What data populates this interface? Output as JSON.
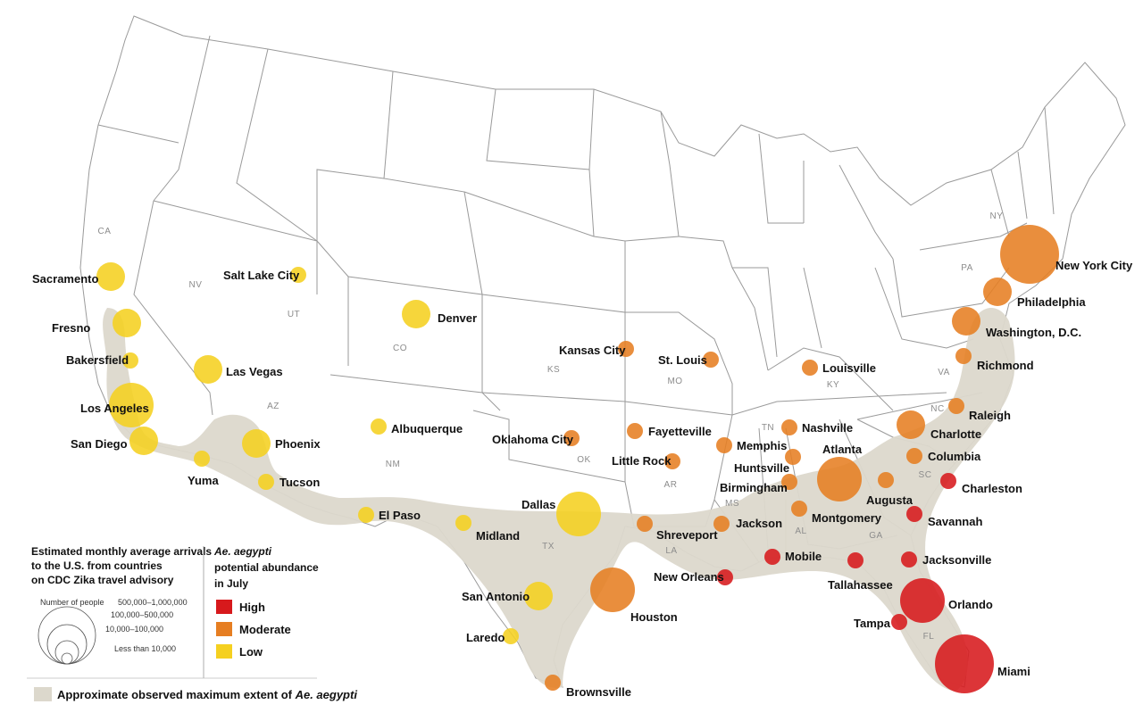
{
  "map": {
    "state_labels": [
      "CA",
      "NV",
      "UT",
      "CO",
      "AZ",
      "NM",
      "KS",
      "MO",
      "KY",
      "TN",
      "AR",
      "MS",
      "AL",
      "GA",
      "SC",
      "NC",
      "VA",
      "PA",
      "NY",
      "TX",
      "LA",
      "OK",
      "FL"
    ],
    "cities": [
      {
        "name": "Sacramento",
        "level": "low",
        "size": "10,000–100,000"
      },
      {
        "name": "Fresno",
        "level": "low",
        "size": "10,000–100,000"
      },
      {
        "name": "Bakersfield",
        "level": "low",
        "size": "Less than 10,000"
      },
      {
        "name": "Los Angeles",
        "level": "low",
        "size": "100,000–500,000"
      },
      {
        "name": "San Diego",
        "level": "low",
        "size": "10,000–100,000"
      },
      {
        "name": "Yuma",
        "level": "low",
        "size": "Less than 10,000"
      },
      {
        "name": "Las Vegas",
        "level": "low",
        "size": "10,000–100,000"
      },
      {
        "name": "Salt Lake City",
        "level": "low",
        "size": "Less than 10,000"
      },
      {
        "name": "Phoenix",
        "level": "low",
        "size": "10,000–100,000"
      },
      {
        "name": "Tucson",
        "level": "low",
        "size": "Less than 10,000"
      },
      {
        "name": "Denver",
        "level": "low",
        "size": "10,000–100,000"
      },
      {
        "name": "Albuquerque",
        "level": "low",
        "size": "Less than 10,000"
      },
      {
        "name": "El Paso",
        "level": "low",
        "size": "Less than 10,000"
      },
      {
        "name": "Midland",
        "level": "low",
        "size": "Less than 10,000"
      },
      {
        "name": "Dallas",
        "level": "low",
        "size": "100,000–500,000"
      },
      {
        "name": "San Antonio",
        "level": "low",
        "size": "10,000–100,000"
      },
      {
        "name": "Laredo",
        "level": "low",
        "size": "Less than 10,000"
      },
      {
        "name": "Kansas City",
        "level": "moderate",
        "size": "Less than 10,000"
      },
      {
        "name": "St. Louis",
        "level": "moderate",
        "size": "Less than 10,000"
      },
      {
        "name": "Louisville",
        "level": "moderate",
        "size": "Less than 10,000"
      },
      {
        "name": "Oklahoma City",
        "level": "moderate",
        "size": "Less than 10,000"
      },
      {
        "name": "Fayetteville",
        "level": "moderate",
        "size": "Less than 10,000"
      },
      {
        "name": "Little Rock",
        "level": "moderate",
        "size": "Less than 10,000"
      },
      {
        "name": "Memphis",
        "level": "moderate",
        "size": "Less than 10,000"
      },
      {
        "name": "Nashville",
        "level": "moderate",
        "size": "Less than 10,000"
      },
      {
        "name": "Huntsville",
        "level": "moderate",
        "size": "Less than 10,000"
      },
      {
        "name": "Birmingham",
        "level": "moderate",
        "size": "Less than 10,000"
      },
      {
        "name": "Atlanta",
        "level": "moderate",
        "size": "100,000–500,000"
      },
      {
        "name": "Augusta",
        "level": "moderate",
        "size": "Less than 10,000"
      },
      {
        "name": "Montgomery",
        "level": "moderate",
        "size": "Less than 10,000"
      },
      {
        "name": "Jackson",
        "level": "moderate",
        "size": "Less than 10,000"
      },
      {
        "name": "Shreveport",
        "level": "moderate",
        "size": "Less than 10,000"
      },
      {
        "name": "Houston",
        "level": "moderate",
        "size": "100,000–500,000"
      },
      {
        "name": "Brownsville",
        "level": "moderate",
        "size": "Less than 10,000"
      },
      {
        "name": "Charlotte",
        "level": "moderate",
        "size": "10,000–100,000"
      },
      {
        "name": "Columbia",
        "level": "moderate",
        "size": "Less than 10,000"
      },
      {
        "name": "Raleigh",
        "level": "moderate",
        "size": "Less than 10,000"
      },
      {
        "name": "Richmond",
        "level": "moderate",
        "size": "Less than 10,000"
      },
      {
        "name": "Washington, D.C.",
        "level": "moderate",
        "size": "10,000–100,000"
      },
      {
        "name": "Philadelphia",
        "level": "moderate",
        "size": "10,000–100,000"
      },
      {
        "name": "New York City",
        "level": "moderate",
        "size": "500,000–1,000,000"
      },
      {
        "name": "Charleston",
        "level": "high",
        "size": "Less than 10,000"
      },
      {
        "name": "Savannah",
        "level": "high",
        "size": "Less than 10,000"
      },
      {
        "name": "Jacksonville",
        "level": "high",
        "size": "Less than 10,000"
      },
      {
        "name": "Tallahassee",
        "level": "high",
        "size": "Less than 10,000"
      },
      {
        "name": "Mobile",
        "level": "high",
        "size": "Less than 10,000"
      },
      {
        "name": "New Orleans",
        "level": "high",
        "size": "Less than 10,000"
      },
      {
        "name": "Orlando",
        "level": "high",
        "size": "100,000–500,000"
      },
      {
        "name": "Tampa",
        "level": "high",
        "size": "Less than 10,000"
      },
      {
        "name": "Miami",
        "level": "high",
        "size": "500,000–1,000,000"
      }
    ]
  },
  "legend": {
    "arrivals_title": [
      "Estimated monthly average arrivals",
      "to the U.S. from countries",
      "on CDC Zika travel advisory"
    ],
    "size_header": "Number of people",
    "size_classes": [
      "500,000–1,000,000",
      "100,000–500,000",
      "10,000–100,000",
      "Less than 10,000"
    ],
    "abundance_title_italic": "Ae. aegypti",
    "abundance_title": [
      "potential abundance",
      "in July"
    ],
    "levels": [
      {
        "key": "high",
        "label": "High"
      },
      {
        "key": "moderate",
        "label": "Moderate"
      },
      {
        "key": "low",
        "label": "Low"
      }
    ],
    "extent_label": "Approximate observed maximum extent of ",
    "extent_label_italic": "Ae. aegypti"
  },
  "colors": {
    "high": "#d7191c",
    "moderate": "#e67e22",
    "low": "#f5d020",
    "extent": "#dcd8cc",
    "state_border": "#9a9a9a"
  }
}
